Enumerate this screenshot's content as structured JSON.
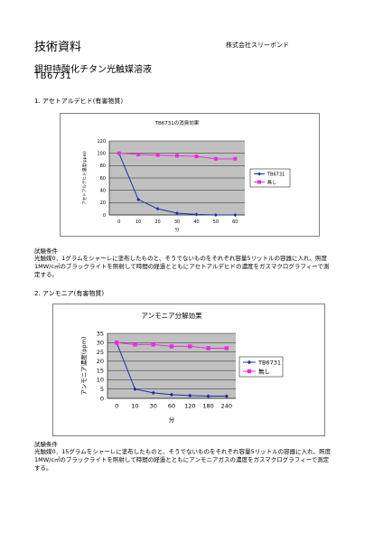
{
  "header": {
    "title": "技術資料",
    "company": "株式会社スリーボンド"
  },
  "product": {
    "name": "銀担持酸化チタン光触媒溶液",
    "code": "TB6731"
  },
  "sections": [
    {
      "heading": "1. アセトアルデヒド(有害物質)",
      "conditions_label": "試験条件",
      "conditions_text": "光触媒0．1グラムをシャーレに塗布したものと、そうでないものをそれぞれ容量5リットルの容器に入れ、照度1MW/c㎡のブラックライトを照射して時間の経過とともにアセトアルデヒドの濃度をガスマクログラフィーで測定する。"
    },
    {
      "heading": "2. アンモニア(有害物質)",
      "conditions_label": "試験条件",
      "conditions_text": "光触媒0．15グラムをシャーレに塗布したものと、そうでないものをそれぞれ容量5リットルの容器に入れ、照度1MW/c㎡のブラックライトを照射して時間の経過とともにアンモニアガスの濃度をガスマクログラフィーで測定する。"
    }
  ],
  "chart_data": [
    {
      "type": "line",
      "title": "TB6731の消臭効果",
      "xlabel": "分",
      "ylabel": "アセトアルデヒド濃度(ppm)",
      "categories": [
        "0",
        "10",
        "20",
        "30",
        "40",
        "50",
        "60"
      ],
      "yticks": [
        0,
        20,
        40,
        60,
        80,
        100,
        120
      ],
      "ylim": [
        0,
        120
      ],
      "grid": true,
      "legend": "right",
      "series": [
        {
          "name": "TB6731",
          "color": "#1f2fa8",
          "marker": "diamond",
          "values": [
            100,
            25,
            10,
            3,
            1,
            0,
            0
          ]
        },
        {
          "name": "無し",
          "color": "#e62fe0",
          "marker": "square",
          "values": [
            100,
            98,
            97,
            96,
            95,
            91,
            91
          ]
        }
      ]
    },
    {
      "type": "line",
      "title": "アンモニア分解効果",
      "xlabel": "分",
      "ylabel": "アンモニア濃度(ppm)",
      "categories": [
        "0",
        "10",
        "30",
        "60",
        "120",
        "180",
        "240"
      ],
      "yticks": [
        0,
        5,
        10,
        15,
        20,
        25,
        30,
        35
      ],
      "ylim": [
        0,
        35
      ],
      "grid": true,
      "legend": "right",
      "series": [
        {
          "name": "TB6731",
          "color": "#1f2fa8",
          "marker": "diamond",
          "values": [
            30,
            5,
            3,
            2,
            1.5,
            1.2,
            1.2
          ]
        },
        {
          "name": "無し",
          "color": "#e62fe0",
          "marker": "square",
          "values": [
            30,
            29,
            29,
            28,
            28,
            27,
            27
          ]
        }
      ]
    }
  ]
}
